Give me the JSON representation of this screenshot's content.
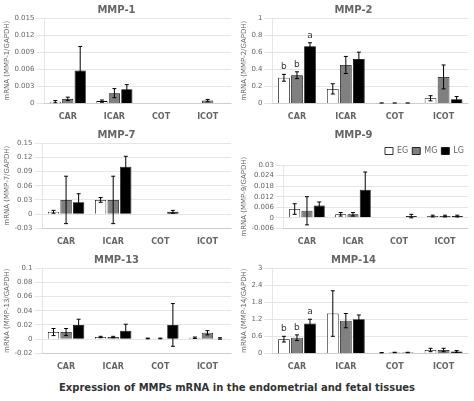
{
  "title": "Expression of MMPs mRNA in the endometrial and fetal tissues",
  "chart_data": [
    {
      "type": "bar",
      "title": "MMP-1",
      "ylabel": "mRNA (MMP-1/GAPDH)",
      "categories": [
        "CAR",
        "ICAR",
        "COT",
        "ICOT"
      ],
      "series": [
        {
          "name": "EG",
          "color": "#ffffff",
          "values": [
            0.0003,
            0.0004,
            0.0,
            0.0
          ],
          "errors": [
            0.0002,
            0.0002,
            0.0,
            0.0
          ]
        },
        {
          "name": "MG",
          "color": "#808080",
          "values": [
            0.0008,
            0.0018,
            0.0,
            0.0005
          ],
          "errors": [
            0.0003,
            0.0008,
            0.0,
            0.0002
          ]
        },
        {
          "name": "LG",
          "color": "#000000",
          "values": [
            0.0058,
            0.0025,
            0.0,
            0.0
          ],
          "errors": [
            0.0042,
            0.0008,
            0.0,
            0.0
          ]
        }
      ],
      "ylim": [
        0,
        0.015
      ],
      "yticks": [
        0,
        0.003,
        0.006,
        0.009,
        0.012,
        0.015
      ],
      "grid": true
    },
    {
      "type": "bar",
      "title": "MMP-2",
      "ylabel": "mRNA (MMP-2/GAPDH)",
      "categories": [
        "CAR",
        "ICAR",
        "COT",
        "ICOT"
      ],
      "series": [
        {
          "name": "EG",
          "color": "#ffffff",
          "values": [
            0.3,
            0.17,
            0.003,
            0.06
          ],
          "errors": [
            0.04,
            0.06,
            0.001,
            0.03
          ]
        },
        {
          "name": "MG",
          "color": "#808080",
          "values": [
            0.33,
            0.45,
            0.003,
            0.31
          ],
          "errors": [
            0.04,
            0.1,
            0.001,
            0.14
          ]
        },
        {
          "name": "LG",
          "color": "#000000",
          "values": [
            0.67,
            0.52,
            0.003,
            0.05
          ],
          "errors": [
            0.04,
            0.08,
            0.001,
            0.03
          ]
        }
      ],
      "annotations": [
        {
          "text": "b",
          "series": "EG",
          "category": "CAR"
        },
        {
          "text": "b",
          "series": "MG",
          "category": "CAR"
        },
        {
          "text": "a",
          "series": "LG",
          "category": "CAR"
        }
      ],
      "ylim": [
        0,
        1.0
      ],
      "yticks": [
        0,
        0.2,
        0.4,
        0.6,
        0.8,
        1.0
      ],
      "grid": true
    },
    {
      "type": "bar",
      "title": "MMP-7",
      "ylabel": "mRNA (MMP-7/GAPDH)",
      "categories": [
        "CAR",
        "ICAR",
        "COT",
        "ICOT"
      ],
      "series": [
        {
          "name": "EG",
          "color": "#ffffff",
          "values": [
            0.005,
            0.03,
            0.0,
            0.0
          ],
          "errors": [
            0.003,
            0.005,
            0.0,
            0.0
          ]
        },
        {
          "name": "MG",
          "color": "#808080",
          "values": [
            0.03,
            0.03,
            0.0,
            0.0
          ],
          "errors": [
            0.05,
            0.05,
            0.0,
            0.0
          ]
        },
        {
          "name": "LG",
          "color": "#000000",
          "values": [
            0.025,
            0.1,
            0.005,
            0.0
          ],
          "errors": [
            0.018,
            0.022,
            0.003,
            0.0
          ]
        }
      ],
      "ylim": [
        -0.03,
        0.15
      ],
      "yticks": [
        -0.03,
        0,
        0.03,
        0.06,
        0.09,
        0.12,
        0.15
      ],
      "grid": true
    },
    {
      "type": "bar",
      "title": "MMP-9",
      "ylabel": "mRNA (MMP-9/GAPDH)",
      "categories": [
        "CAR",
        "ICAR",
        "COT",
        "ICOT"
      ],
      "series": [
        {
          "name": "EG",
          "color": "#ffffff",
          "values": [
            0.005,
            0.002,
            0.0,
            0.001
          ],
          "errors": [
            0.003,
            0.001,
            0.0,
            0.0005
          ]
        },
        {
          "name": "MG",
          "color": "#808080",
          "values": [
            0.004,
            0.002,
            0.0,
            0.001
          ],
          "errors": [
            0.008,
            0.001,
            0.0,
            0.0005
          ]
        },
        {
          "name": "LG",
          "color": "#000000",
          "values": [
            0.007,
            0.016,
            0.001,
            0.001
          ],
          "errors": [
            0.002,
            0.01,
            0.001,
            0.0005
          ]
        }
      ],
      "ylim": [
        -0.006,
        0.03
      ],
      "yticks": [
        -0.006,
        0,
        0.006,
        0.012,
        0.018,
        0.024,
        0.03
      ],
      "grid": true,
      "legend": "upper right"
    },
    {
      "type": "bar",
      "title": "MMP-13",
      "ylabel": "mRNA (MMP-13/GAPDH)",
      "categories": [
        "CAR",
        "ICAR",
        "COT",
        "ICOT"
      ],
      "series": [
        {
          "name": "EG",
          "color": "#ffffff",
          "values": [
            0.01,
            0.003,
            0.001,
            0.002
          ],
          "errors": [
            0.005,
            0.001,
            0.0005,
            0.001
          ]
        },
        {
          "name": "MG",
          "color": "#808080",
          "values": [
            0.01,
            0.003,
            0.001,
            0.009
          ],
          "errors": [
            0.005,
            0.001,
            0.0005,
            0.003
          ]
        },
        {
          "name": "LG",
          "color": "#000000",
          "values": [
            0.02,
            0.012,
            0.02,
            0.001
          ],
          "errors": [
            0.008,
            0.009,
            0.03,
            0.001
          ]
        }
      ],
      "ylim": [
        -0.02,
        0.1
      ],
      "yticks": [
        -0.02,
        0,
        0.02,
        0.04,
        0.06,
        0.08,
        0.1
      ],
      "grid": true
    },
    {
      "type": "bar",
      "title": "MMP-14",
      "ylabel": "mRNA (MMP-14/GAPDH)",
      "categories": [
        "CAR",
        "ICAR",
        "COT",
        "ICOT"
      ],
      "series": [
        {
          "name": "EG",
          "color": "#ffffff",
          "values": [
            0.5,
            1.4,
            0.02,
            0.12
          ],
          "errors": [
            0.1,
            0.8,
            0.01,
            0.06
          ]
        },
        {
          "name": "MG",
          "color": "#808080",
          "values": [
            0.55,
            1.15,
            0.03,
            0.12
          ],
          "errors": [
            0.1,
            0.25,
            0.01,
            0.06
          ]
        },
        {
          "name": "LG",
          "color": "#000000",
          "values": [
            1.05,
            1.2,
            0.03,
            0.07
          ],
          "errors": [
            0.15,
            0.15,
            0.01,
            0.03
          ]
        }
      ],
      "annotations": [
        {
          "text": "b",
          "series": "EG",
          "category": "CAR"
        },
        {
          "text": "b",
          "series": "MG",
          "category": "CAR"
        },
        {
          "text": "a",
          "series": "LG",
          "category": "CAR"
        }
      ],
      "ylim": [
        0,
        3.0
      ],
      "yticks": [
        0,
        0.6,
        1.2,
        1.8,
        2.4,
        3.0
      ],
      "grid": true
    }
  ]
}
